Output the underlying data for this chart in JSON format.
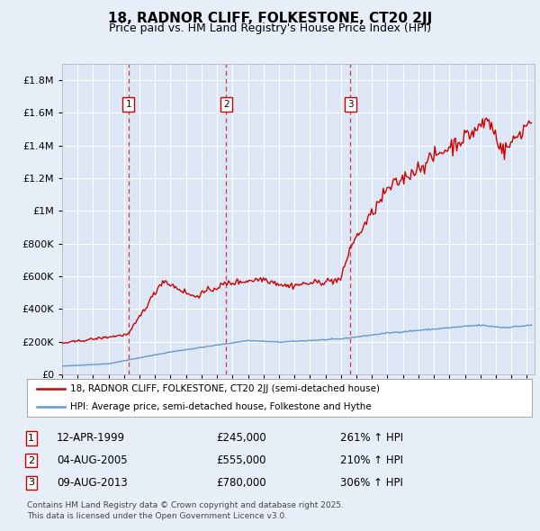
{
  "title": "18, RADNOR CLIFF, FOLKESTONE, CT20 2JJ",
  "subtitle": "Price paid vs. HM Land Registry's House Price Index (HPI)",
  "legend_line1": "18, RADNOR CLIFF, FOLKESTONE, CT20 2JJ (semi-detached house)",
  "legend_line2": "HPI: Average price, semi-detached house, Folkestone and Hythe",
  "footer1": "Contains HM Land Registry data © Crown copyright and database right 2025.",
  "footer2": "This data is licensed under the Open Government Licence v3.0.",
  "sale_events": [
    {
      "num": 1,
      "date": "12-APR-1999",
      "price": "£245,000",
      "hpi": "261% ↑ HPI",
      "year": 1999.28
    },
    {
      "num": 2,
      "date": "04-AUG-2005",
      "price": "£555,000",
      "hpi": "210% ↑ HPI",
      "year": 2005.59
    },
    {
      "num": 3,
      "date": "09-AUG-2013",
      "price": "£780,000",
      "hpi": "306% ↑ HPI",
      "year": 2013.61
    }
  ],
  "background_color": "#e8eef8",
  "plot_bg_color": "#dce6f5",
  "red_color": "#cc0000",
  "blue_color": "#6699cc",
  "grid_color": "#ffffff",
  "ylim": [
    0,
    1900000
  ],
  "xlim_start": 1995,
  "xlim_end": 2025.5
}
